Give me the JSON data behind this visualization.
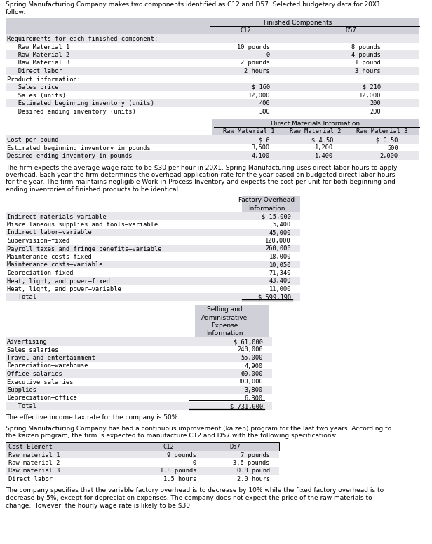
{
  "intro_text": "Spring Manufacturing Company makes two components identified as C12 and D57. Selected budgetary data for 20X1\nfollow:",
  "table1_header": "Finished Components",
  "table1_rows": [
    [
      "Requirements for each finished component:",
      "",
      ""
    ],
    [
      "   Raw Material 1",
      "10 pounds",
      "8 pounds"
    ],
    [
      "   Raw Material 2",
      "0",
      "4 pounds"
    ],
    [
      "   Raw Material 3",
      "2 pounds",
      "1 pound"
    ],
    [
      "   Direct labor",
      "2 hours",
      "3 hours"
    ],
    [
      "Product information:",
      "",
      ""
    ],
    [
      "   Sales price",
      "$ 160",
      "$ 210"
    ],
    [
      "   Sales (units)",
      "12,000",
      "12,000"
    ],
    [
      "   Estimated beginning inventory (units)",
      "400",
      "200"
    ],
    [
      "   Desired ending inventory (units)",
      "300",
      "200"
    ]
  ],
  "table2_header": "Direct Materials Information",
  "table2_subheaders": [
    "Raw Material 1",
    "Raw Material 2",
    "Raw Material 3"
  ],
  "table2_rows": [
    [
      "Cost per pound",
      "$ 6",
      "$ 4.50",
      "$ 0.50"
    ],
    [
      "Estimated beginning inventory in pounds",
      "3,500",
      "1,200",
      "500"
    ],
    [
      "Desired ending inventory in pounds",
      "4,100",
      "1,400",
      "2,000"
    ]
  ],
  "para1": "The firm expects the average wage rate to be $30 per hour in 20X1. Spring Manufacturing uses direct labor hours to apply\noverhead. Each year the firm determines the overhead application rate for the year based on budgeted direct labor hours\nfor the year. The firm maintains negligible Work-in-Process Inventory and expects the cost per unit for both beginning and\nending inventories of finished products to be identical.",
  "table3_header": "Factory Overhead\nInformation",
  "table3_rows": [
    [
      "Indirect materials–variable",
      "$ 15,000"
    ],
    [
      "Miscellaneous supplies and tools–variable",
      "5,400"
    ],
    [
      "Indirect labor–variable",
      "45,000"
    ],
    [
      "Supervision–fixed",
      "120,000"
    ],
    [
      "Payroll taxes and fringe benefits–variable",
      "260,000"
    ],
    [
      "Maintenance costs–fixed",
      "18,000"
    ],
    [
      "Maintenance costs–variable",
      "10,050"
    ],
    [
      "Depreciation–fixed",
      "71,340"
    ],
    [
      "Heat, light, and power–fixed",
      "43,400"
    ],
    [
      "Heat, light, and power–variable",
      "11,000"
    ],
    [
      "   Total",
      "$ 599,190"
    ]
  ],
  "table4_header": "Selling and\nAdministrative\nExpense\nInformation",
  "table4_rows": [
    [
      "Advertising",
      "$ 61,000"
    ],
    [
      "Sales salaries",
      "240,000"
    ],
    [
      "Travel and entertainment",
      "55,000"
    ],
    [
      "Depreciation–warehouse",
      "4,900"
    ],
    [
      "Office salaries",
      "60,000"
    ],
    [
      "Executive salaries",
      "300,000"
    ],
    [
      "Supplies",
      "3,800"
    ],
    [
      "Depreciation–office",
      "6,300"
    ],
    [
      "   Total",
      "$ 731,000"
    ]
  ],
  "para2": "The effective income tax rate for the company is 50%.",
  "para3": "Spring Manufacturing Company has had a continuous improvement (kaizen) program for the last two years. According to\nthe kaizen program, the firm is expected to manufacture C12 and D57 with the following specifications:",
  "table5_header": [
    "Cost Element",
    "C12",
    "D57"
  ],
  "table5_rows": [
    [
      "Raw material 1",
      "9 pounds",
      "7 pounds"
    ],
    [
      "Raw material 2",
      "0",
      "3.6 pounds"
    ],
    [
      "Raw material 3",
      "1.8 pounds",
      "0.8 pound"
    ],
    [
      "Direct labor",
      "1.5 hours",
      "2.0 hours"
    ]
  ],
  "para4": "The company specifies that the variable factory overhead is to decrease by 10% while the fixed factory overhead is to\ndecrease by 5%, except for depreciation expenses. The company does not expect the price of the raw materials to\nchange. However, the hourly wage rate is likely to be $30.",
  "header_bg": "#d0d0d8",
  "alt_bg": "#e8e8ec",
  "white_bg": "#ffffff"
}
